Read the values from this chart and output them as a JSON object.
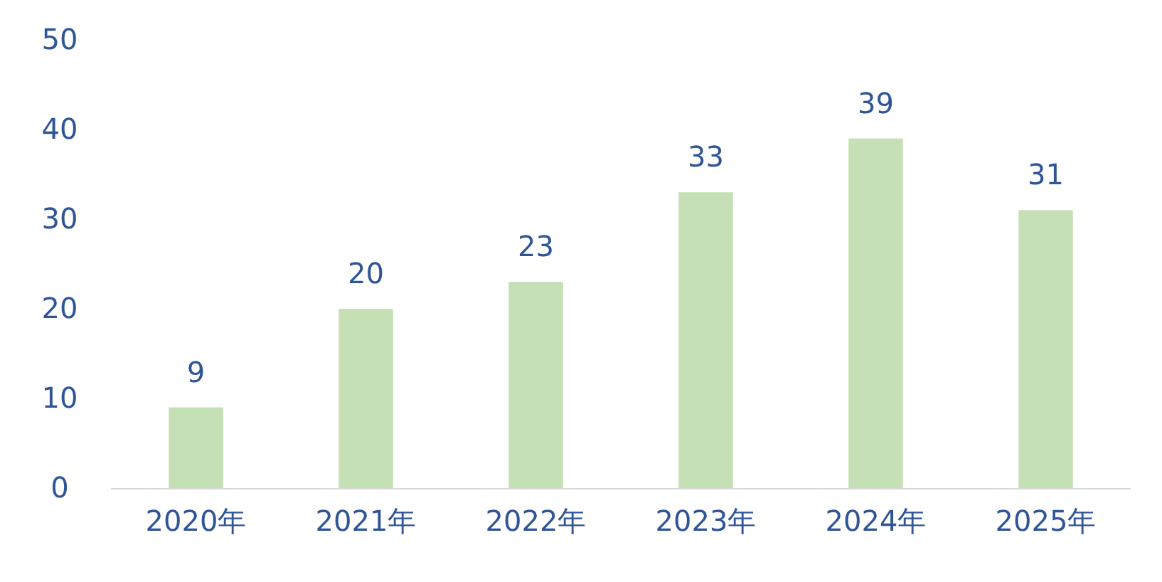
{
  "chart_data": {
    "type": "bar",
    "categories": [
      "2020年",
      "2021年",
      "2022年",
      "2023年",
      "2024年",
      "2025年"
    ],
    "values": [
      9,
      20,
      23,
      33,
      39,
      31
    ],
    "color": "#c5e0b4",
    "ylim": [
      0,
      50
    ],
    "yticks": [
      0,
      10,
      20,
      30,
      40,
      50
    ],
    "grid": false,
    "data_labels": true
  }
}
